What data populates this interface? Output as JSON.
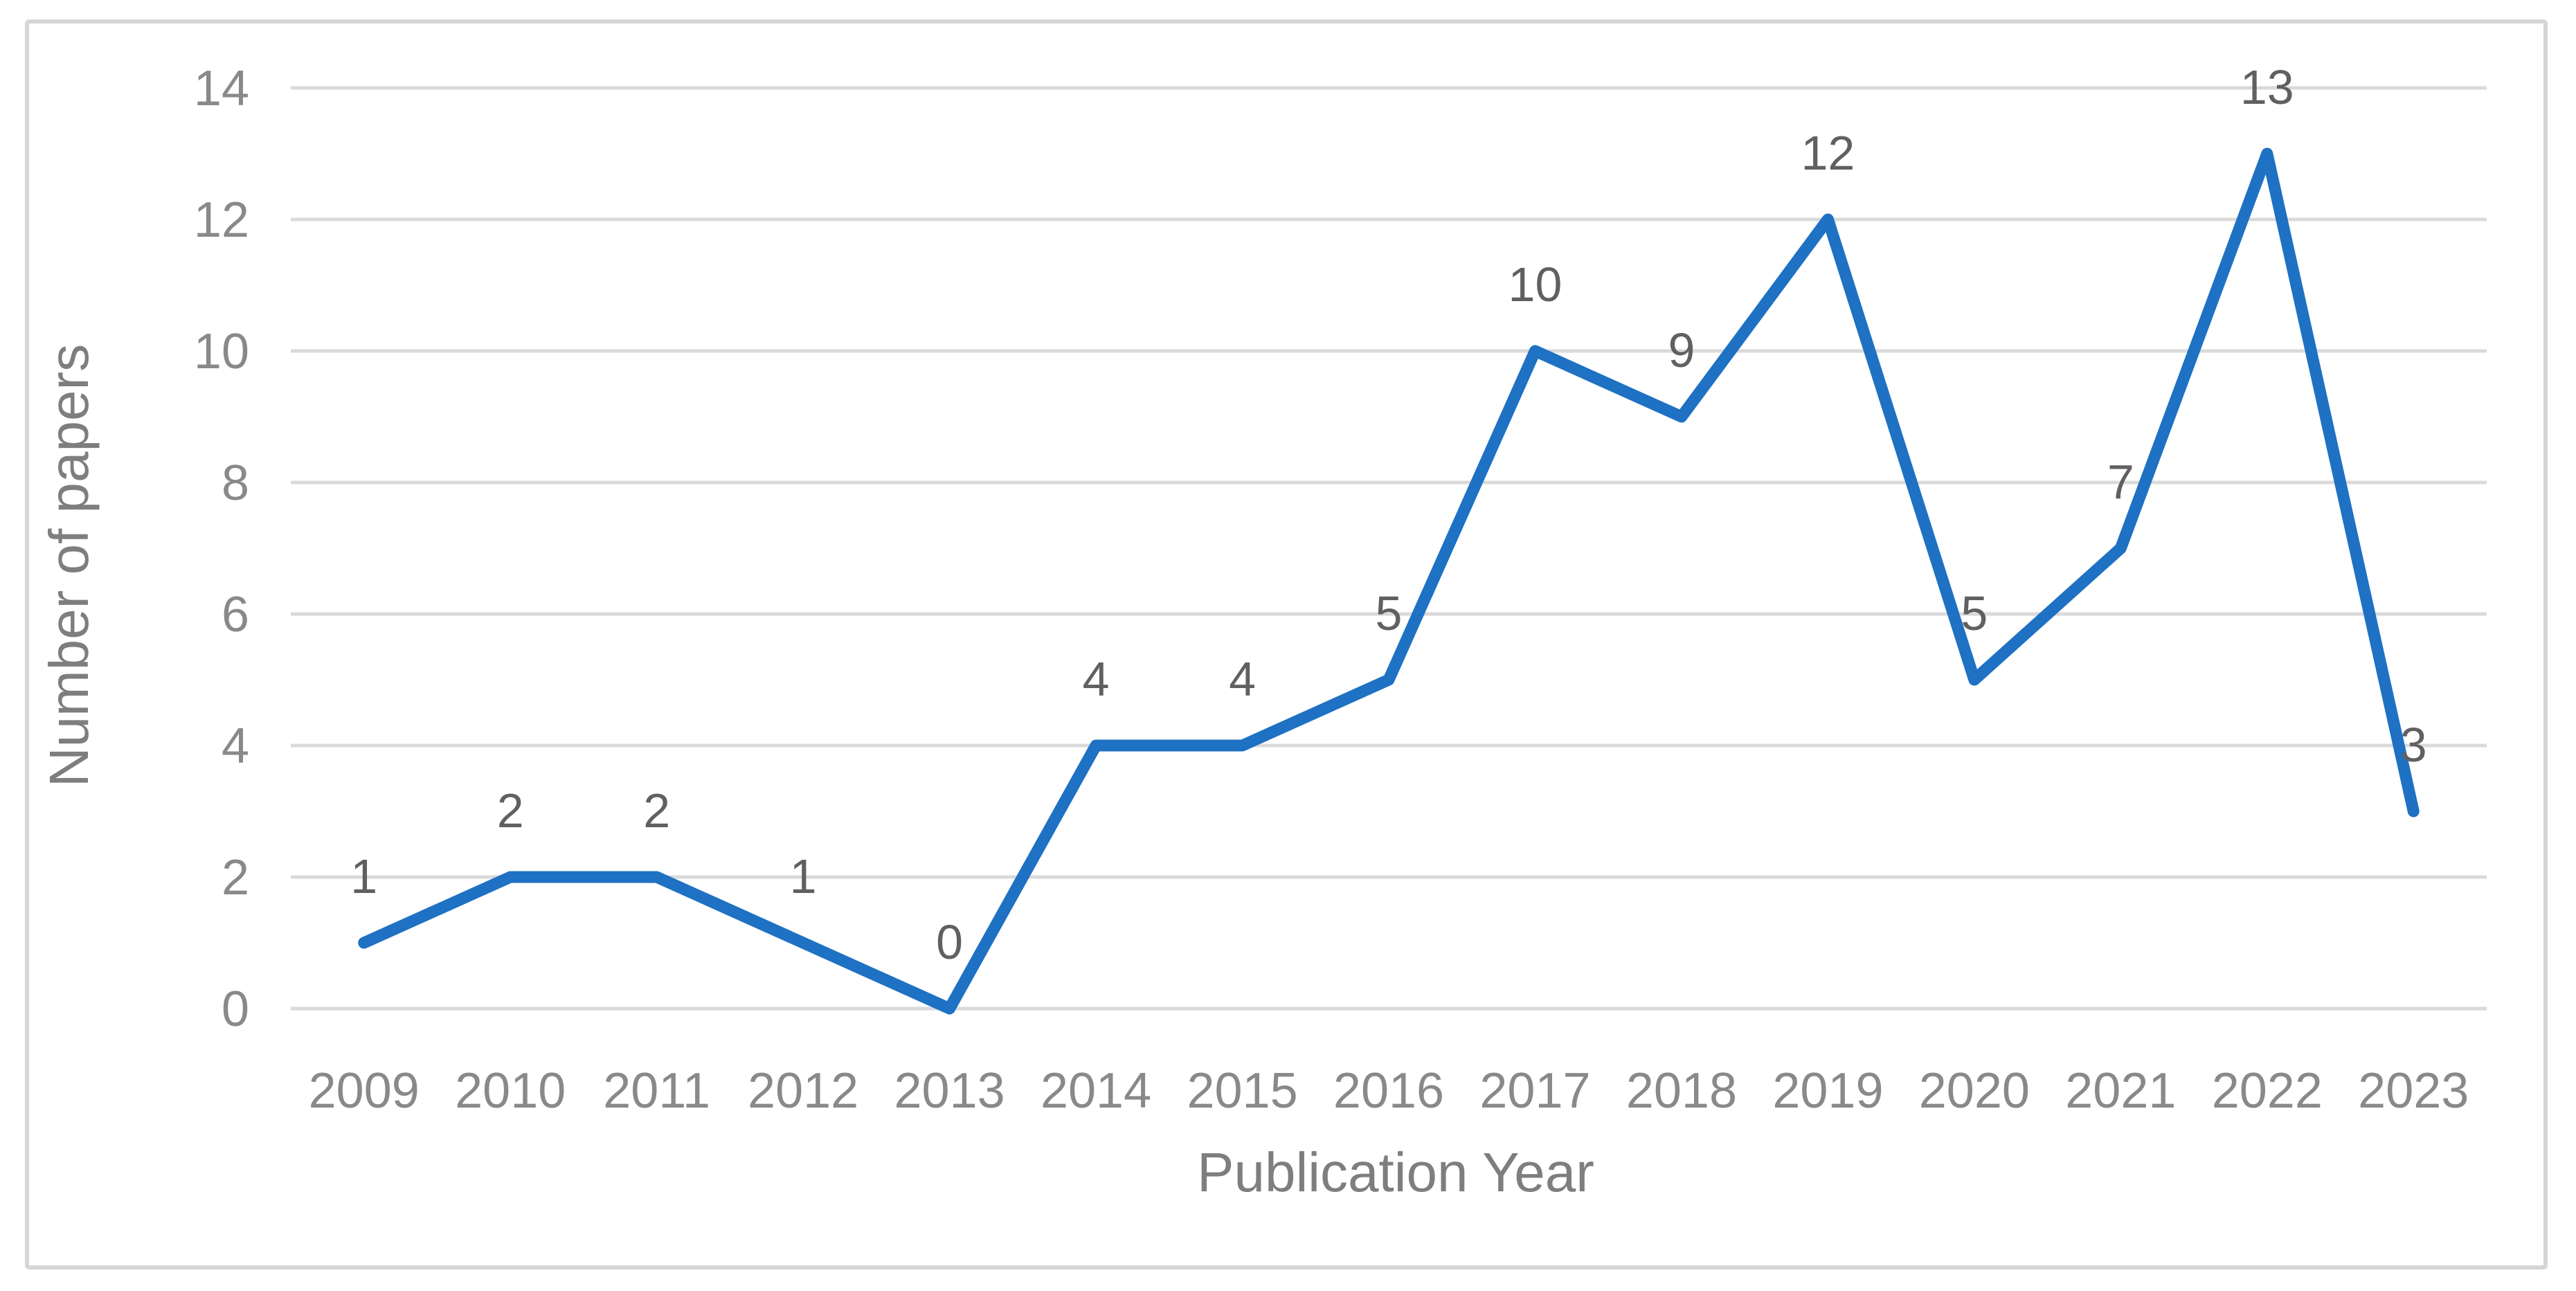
{
  "chart_data": {
    "type": "line",
    "title": "",
    "categories": [
      "2009",
      "2010",
      "2011",
      "2012",
      "2013",
      "2014",
      "2015",
      "2016",
      "2017",
      "2018",
      "2019",
      "2020",
      "2021",
      "2022",
      "2023"
    ],
    "series": [
      {
        "name": "Number of papers",
        "values": [
          1,
          2,
          2,
          1,
          0,
          4,
          4,
          5,
          10,
          9,
          12,
          5,
          7,
          13,
          3
        ]
      }
    ],
    "xlabel": "Publication Year",
    "ylabel": "Number of papers",
    "ylim": [
      0,
      14
    ],
    "y_ticks": [
      0,
      2,
      4,
      6,
      8,
      10,
      12,
      14
    ],
    "grid": "horizontal",
    "legend": "none",
    "data_labels": "above",
    "colors": {
      "line": "#1E71C3",
      "gridline": "#DADADA",
      "frame": "#D6D6D6",
      "tick_text": "#898989",
      "axis_title_text": "#7E7E7E",
      "data_label_text": "#606060",
      "background": "#FFFFFF"
    }
  }
}
